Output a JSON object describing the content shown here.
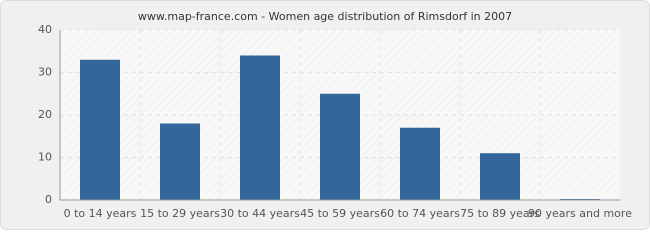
{
  "chart_data": {
    "type": "bar",
    "title": "www.map-france.com - Women age distribution of Rimsdorf in 2007",
    "categories": [
      "0 to 14 years",
      "15 to 29 years",
      "30 to 44 years",
      "45 to 59 years",
      "60 to 74 years",
      "75 to 89 years",
      "90 years and more"
    ],
    "values": [
      33,
      18,
      34,
      25,
      17,
      11,
      0
    ],
    "color": "#336699",
    "ylim": [
      0,
      40
    ],
    "yticks": [
      0,
      10,
      20,
      30,
      40
    ],
    "grid": true
  }
}
